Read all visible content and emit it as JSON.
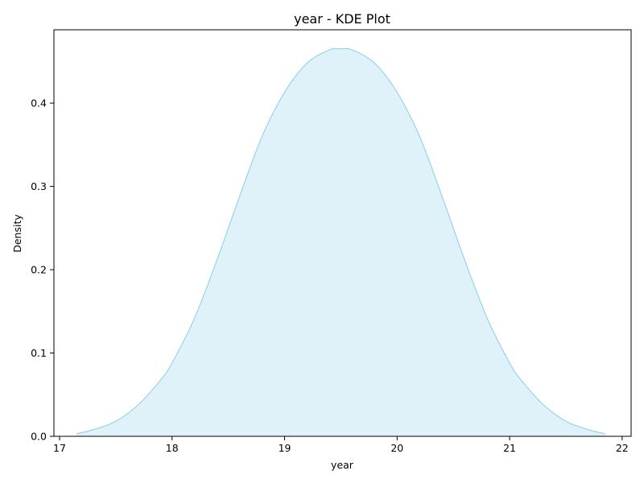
{
  "chart_data": {
    "type": "area",
    "title": "year - KDE Plot",
    "xlabel": "year",
    "ylabel": "Density",
    "xlim": [
      16.95,
      22.08
    ],
    "ylim": [
      0,
      0.488
    ],
    "x_ticks": [
      17,
      18,
      19,
      20,
      21,
      22
    ],
    "y_ticks": [
      0.0,
      0.1,
      0.2,
      0.3,
      0.4
    ],
    "y_tick_labels": [
      "0.0",
      "0.1",
      "0.2",
      "0.3",
      "0.4"
    ],
    "grid": false,
    "series": [
      {
        "color": "#87ceeb",
        "fill_color": "#dff1f9",
        "x": [
          17.15,
          17.3,
          17.5,
          17.7,
          17.9,
          18.0,
          18.2,
          18.4,
          18.6,
          18.8,
          19.0,
          19.2,
          19.4,
          19.5,
          19.6,
          19.8,
          20.0,
          20.2,
          20.4,
          20.6,
          20.8,
          21.0,
          21.1,
          21.3,
          21.5,
          21.7,
          21.85
        ],
        "y": [
          0.003,
          0.008,
          0.018,
          0.038,
          0.068,
          0.088,
          0.142,
          0.212,
          0.288,
          0.36,
          0.413,
          0.448,
          0.464,
          0.465,
          0.464,
          0.448,
          0.413,
          0.36,
          0.288,
          0.212,
          0.142,
          0.088,
          0.068,
          0.038,
          0.018,
          0.008,
          0.003
        ]
      }
    ]
  }
}
